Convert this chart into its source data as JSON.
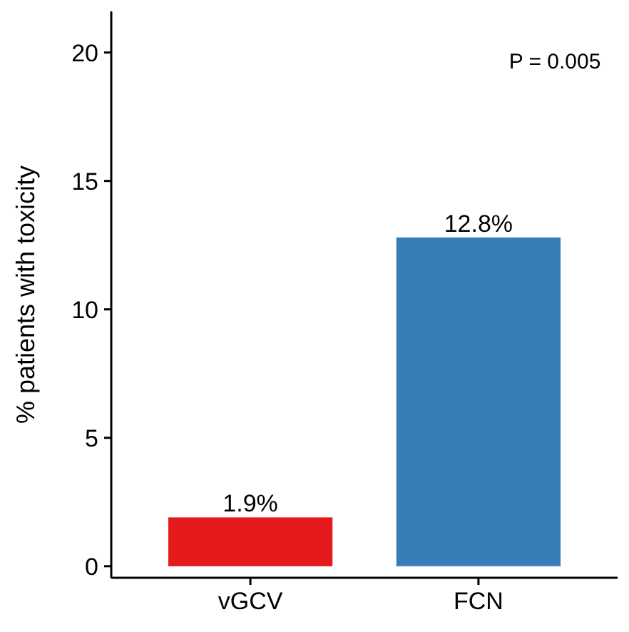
{
  "chart_data": {
    "type": "bar",
    "ylabel": "% patients with toxicity",
    "categories": [
      "vGCV",
      "FCN"
    ],
    "values": [
      1.9,
      12.8
    ],
    "colors": [
      "#e41a1c",
      "#377eb8"
    ],
    "value_labels": [
      "1.9%",
      "12.8%"
    ],
    "ylim": [
      -0.45,
      21.6
    ],
    "yticks": [
      0,
      5,
      10,
      15,
      20
    ],
    "grid": false,
    "annotations": [
      "P = 0.005"
    ]
  }
}
